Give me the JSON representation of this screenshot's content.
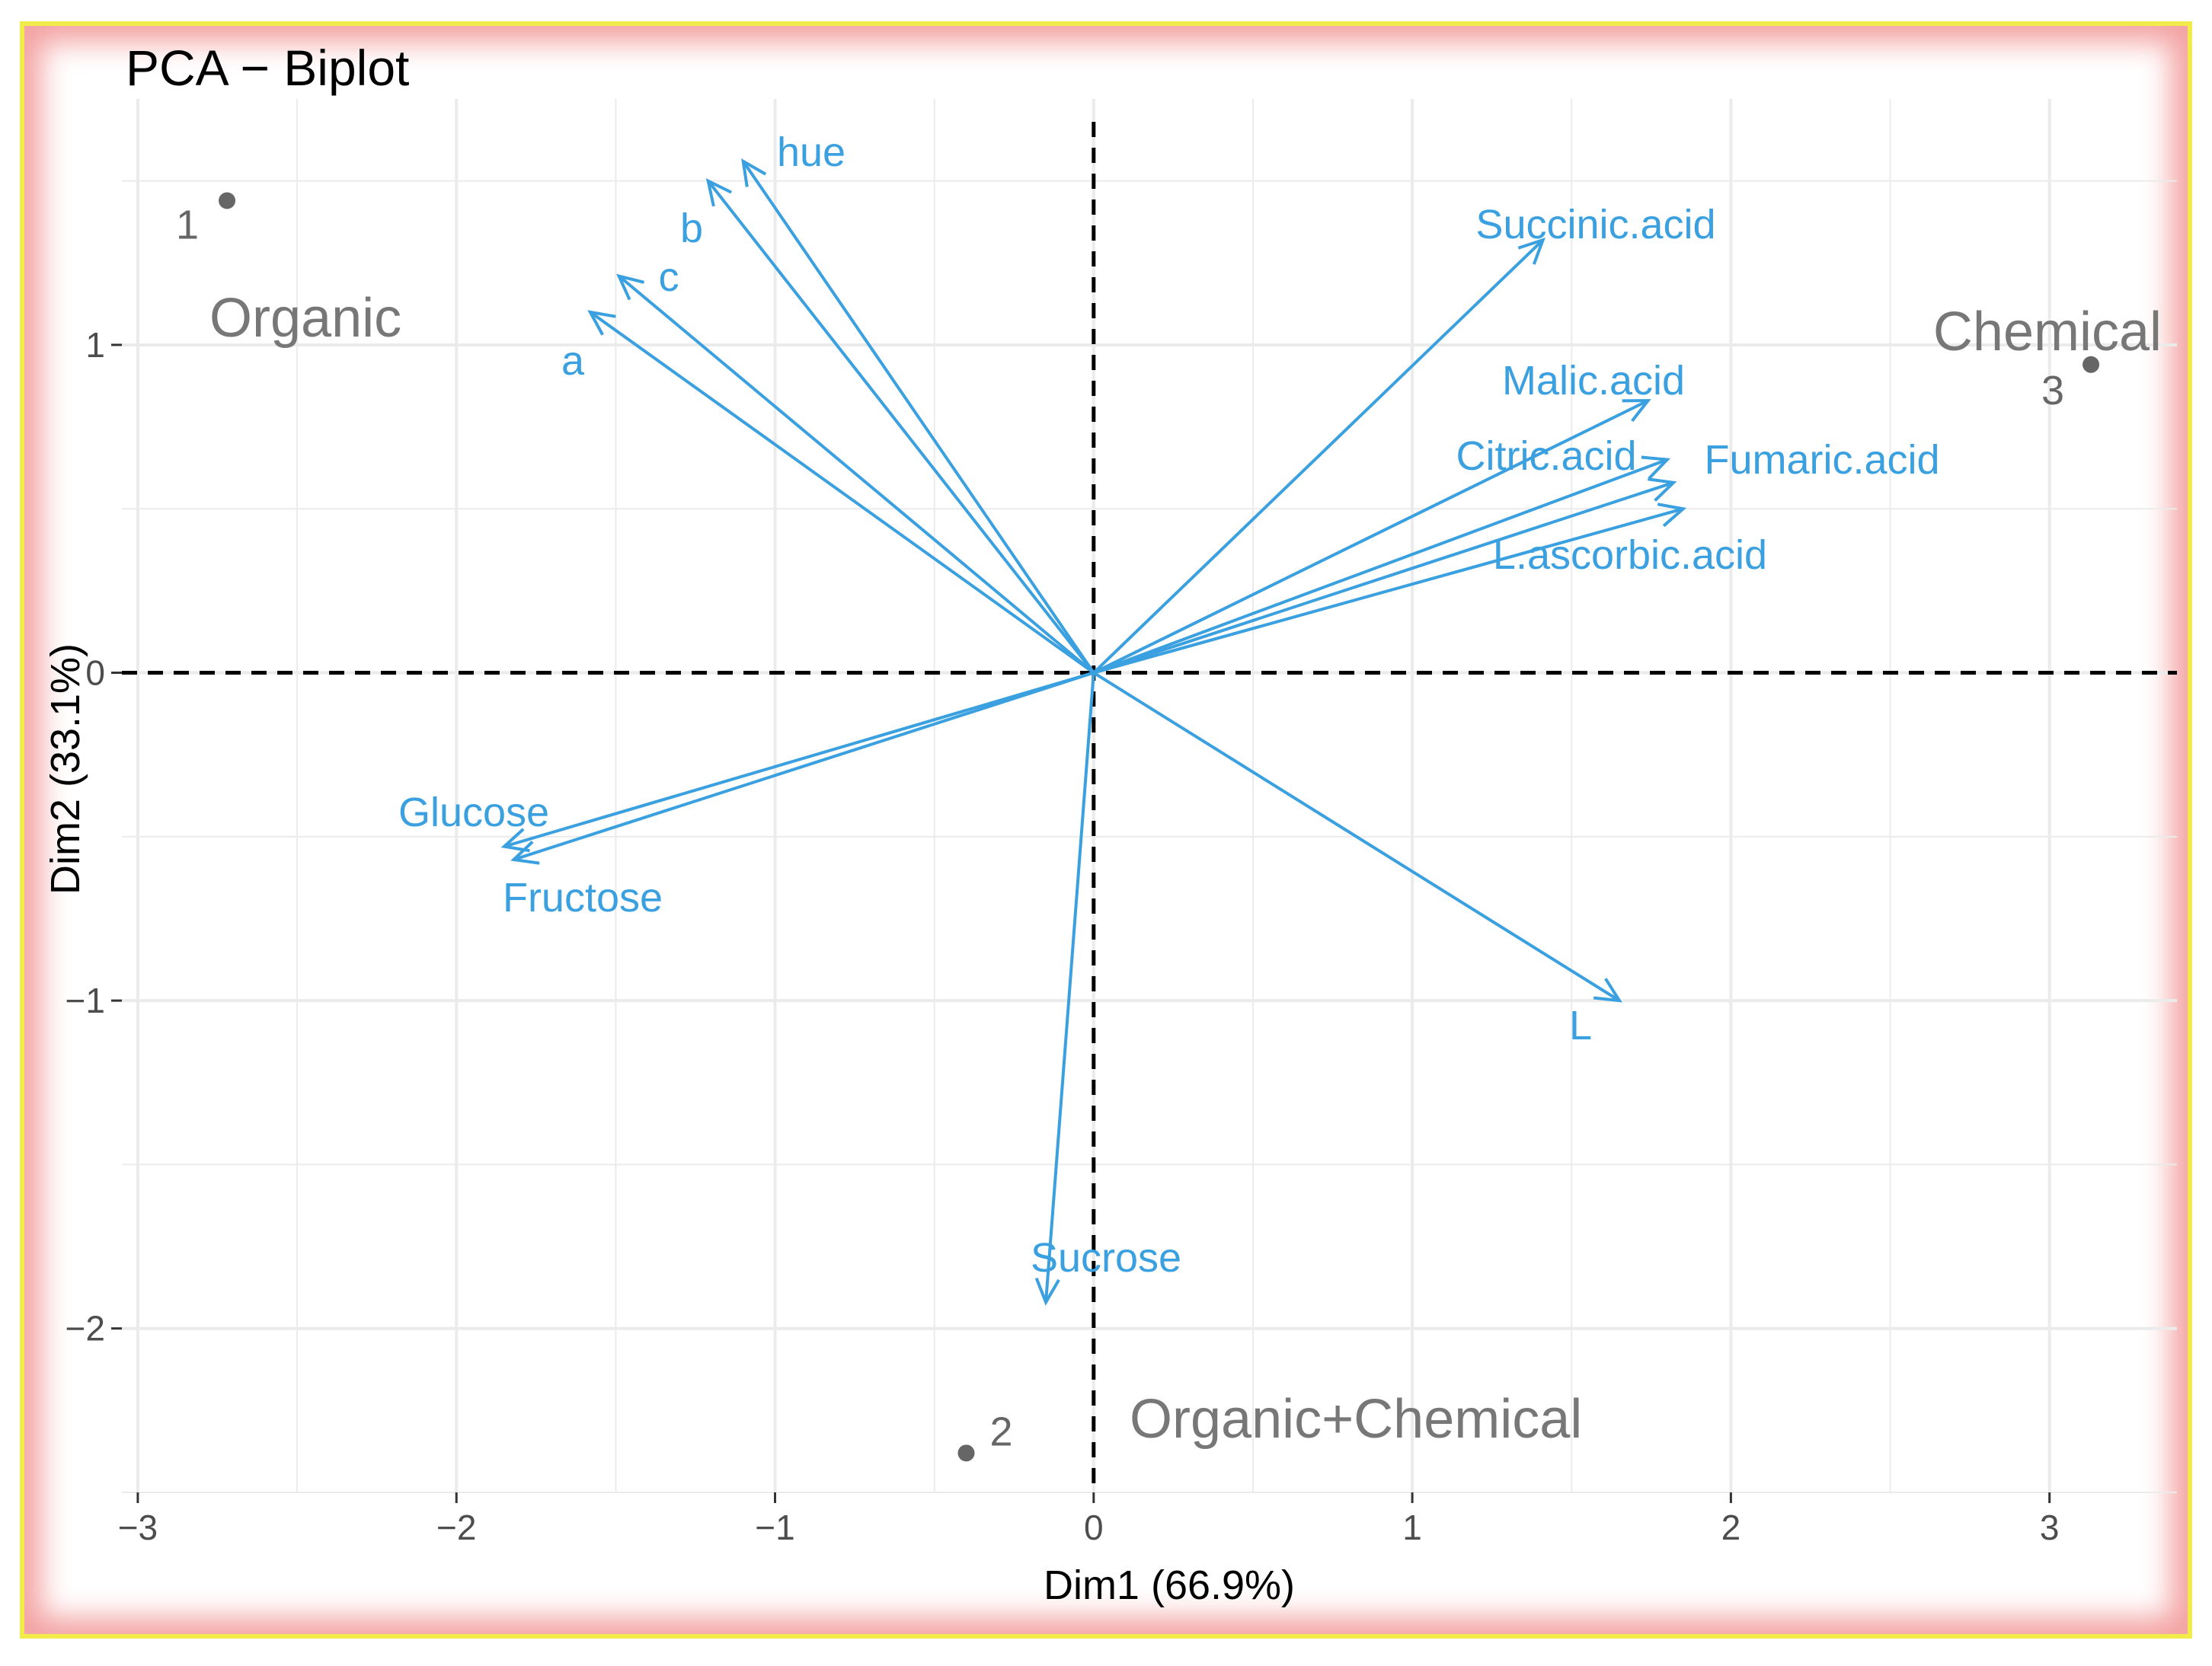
{
  "chart_data": {
    "type": "scatter",
    "title": "PCA − Biplot",
    "xlabel": "Dim1 (66.9%)",
    "ylabel": "Dim2 (33.1%)",
    "xlim": [
      -3.05,
      3.4
    ],
    "ylim": [
      -2.5,
      1.75
    ],
    "x_ticks": [
      -3,
      -2,
      -1,
      0,
      1,
      2,
      3
    ],
    "x_tick_labels": [
      "−3",
      "−2",
      "−1",
      "0",
      "1",
      "2",
      "3"
    ],
    "y_ticks": [
      -2,
      -1,
      0,
      1
    ],
    "y_tick_labels": [
      "−2",
      "−1",
      "0",
      "1"
    ],
    "grid": true,
    "reference_lines": {
      "x": 0,
      "y": 0,
      "style": "dashed"
    },
    "colors": {
      "variables": "#3aa0e0",
      "individuals": "#666666",
      "groups": "#777777",
      "grid": "#ebebeb",
      "frame_border": "#f2ec4a",
      "frame_glow": "#f4a2a2"
    },
    "individuals": [
      {
        "label": "1",
        "x": -2.72,
        "y": 1.44
      },
      {
        "label": "2",
        "x": -0.4,
        "y": -2.38
      },
      {
        "label": "3",
        "x": 3.13,
        "y": 0.94
      }
    ],
    "groups": [
      {
        "label": "Organic"
      },
      {
        "label": "Chemical"
      },
      {
        "label": "Organic+Chemical"
      }
    ],
    "variables": [
      {
        "name": "hue",
        "x": -1.1,
        "y": 1.56
      },
      {
        "name": "b",
        "x": -1.21,
        "y": 1.5
      },
      {
        "name": "c",
        "x": -1.49,
        "y": 1.21
      },
      {
        "name": "a",
        "x": -1.58,
        "y": 1.1
      },
      {
        "name": "Succinic.acid",
        "x": 1.41,
        "y": 1.32
      },
      {
        "name": "Malic.acid",
        "x": 1.74,
        "y": 0.83
      },
      {
        "name": "Citric.acid",
        "x": 1.8,
        "y": 0.65
      },
      {
        "name": "Fumaric.acid",
        "x": 1.82,
        "y": 0.58
      },
      {
        "name": "L.ascorbic.acid",
        "x": 1.85,
        "y": 0.5
      },
      {
        "name": "Glucose",
        "x": -1.85,
        "y": -0.53
      },
      {
        "name": "Fructose",
        "x": -1.82,
        "y": -0.57
      },
      {
        "name": "L",
        "x": 1.65,
        "y": -1.0
      },
      {
        "name": "Sucrose",
        "x": -0.15,
        "y": -1.92
      }
    ]
  }
}
